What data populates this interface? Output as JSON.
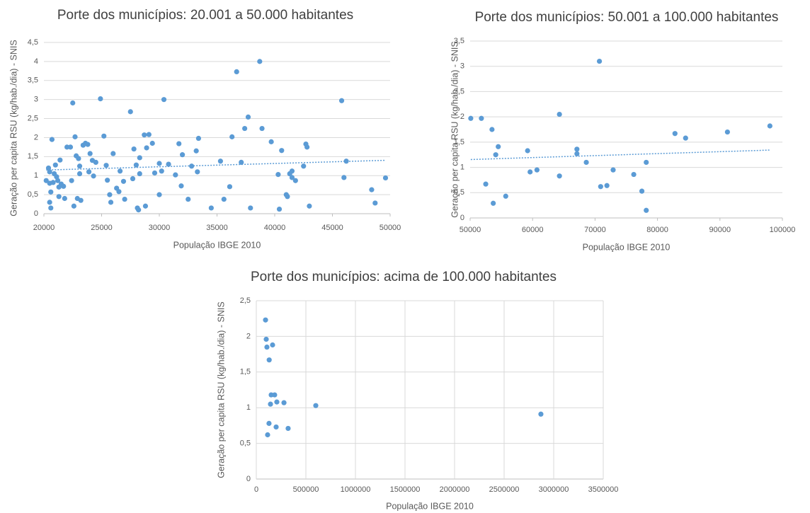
{
  "chart_data": [
    {
      "type": "scatter",
      "title": "Porte dos municípios: 20.001 a 50.000 habitantes",
      "x_label": "População IBGE 2010",
      "y_label": "Geração per capita RSU (kg/hab./dia) - SNIS",
      "color": "#5b9bd5",
      "grid": "y",
      "trendline": {
        "type": "linear",
        "color": "#5b9bd5"
      },
      "x": [
        20200,
        20400,
        20500,
        20500,
        20500,
        20600,
        20600,
        20700,
        20800,
        20900,
        21000,
        21100,
        21200,
        21300,
        21300,
        21400,
        21500,
        21700,
        21800,
        22000,
        22300,
        22400,
        22500,
        22600,
        22700,
        22800,
        22900,
        23000,
        23100,
        23100,
        23200,
        23400,
        23600,
        23800,
        23900,
        24000,
        24200,
        24300,
        24500,
        24900,
        25200,
        25400,
        25500,
        25700,
        25800,
        26000,
        26300,
        26500,
        26600,
        26900,
        27000,
        27500,
        27700,
        27800,
        28000,
        28100,
        28200,
        28300,
        28300,
        28700,
        28800,
        28900,
        29100,
        29400,
        29600,
        30000,
        30000,
        30200,
        30400,
        30800,
        31400,
        31700,
        31900,
        32000,
        32500,
        32800,
        33200,
        33300,
        33400,
        34500,
        35300,
        35600,
        36100,
        36300,
        36700,
        37100,
        37400,
        37700,
        37900,
        38700,
        38900,
        39700,
        40400,
        40300,
        40600,
        41000,
        41100,
        41300,
        41500,
        41500,
        41800,
        42500,
        42700,
        42800,
        43000,
        45800,
        46000,
        46200,
        48400,
        48700,
        49600
      ],
      "values": [
        0.87,
        1.2,
        1.1,
        0.8,
        0.3,
        0.15,
        0.57,
        1.95,
        0.82,
        1.05,
        1.28,
        0.97,
        0.87,
        0.45,
        0.7,
        1.41,
        0.78,
        0.72,
        0.4,
        1.75,
        1.75,
        0.87,
        2.91,
        0.2,
        2.02,
        1.52,
        0.4,
        1.45,
        1.25,
        1.05,
        0.35,
        1.8,
        1.85,
        1.82,
        1.1,
        1.58,
        1.4,
        0.99,
        1.35,
        3.02,
        2.04,
        1.27,
        0.88,
        0.5,
        0.3,
        1.58,
        0.67,
        0.58,
        1.12,
        0.85,
        0.38,
        2.68,
        0.92,
        1.7,
        1.28,
        0.15,
        0.1,
        1.05,
        1.47,
        2.07,
        0.2,
        1.73,
        2.08,
        1.85,
        1.07,
        0.5,
        1.32,
        1.12,
        3.0,
        1.3,
        1.02,
        1.84,
        0.73,
        1.55,
        0.38,
        1.25,
        1.65,
        1.1,
        1.98,
        0.15,
        1.38,
        0.38,
        0.71,
        2.02,
        3.73,
        1.35,
        2.24,
        2.54,
        0.15,
        4.0,
        2.24,
        1.89,
        0.12,
        1.03,
        1.66,
        0.5,
        0.45,
        1.05,
        1.12,
        0.95,
        0.87,
        1.25,
        1.83,
        1.75,
        0.2,
        2.97,
        0.95,
        1.38,
        0.63,
        0.28,
        0.94
      ],
      "xlim": [
        20000,
        50000
      ],
      "xticks": [
        20000,
        25000,
        30000,
        35000,
        40000,
        45000,
        50000
      ],
      "ylim": [
        0,
        4.5
      ],
      "yticks": [
        0,
        {
          "value": 0.5,
          "label": "0,5"
        },
        1,
        {
          "value": 1.5,
          "label": "1,5"
        },
        2,
        {
          "value": 2.5,
          "label": "2,5"
        },
        3,
        {
          "value": 3.5,
          "label": "3,5"
        },
        4,
        {
          "value": 4.5,
          "label": "4,5"
        }
      ]
    },
    {
      "type": "scatter",
      "title": "Porte dos municípios: 50.001 a 100.000 habitantes",
      "x_label": "População IBGE 2010",
      "y_label": "Geração per capita RSU (kg/hab./dia) - SNIS",
      "color": "#5b9bd5",
      "grid": "y",
      "trendline": {
        "type": "linear",
        "color": "#5b9bd5"
      },
      "x": [
        50100,
        51800,
        52500,
        53500,
        53700,
        54100,
        54500,
        55700,
        59200,
        59600,
        60700,
        64300,
        64300,
        67100,
        67100,
        68600,
        70700,
        70900,
        71900,
        72900,
        76200,
        77500,
        78200,
        78200,
        82800,
        84500,
        91200,
        98000
      ],
      "values": [
        1.97,
        1.97,
        0.67,
        1.75,
        0.29,
        1.25,
        1.41,
        0.43,
        1.33,
        0.91,
        0.95,
        2.05,
        0.83,
        1.36,
        1.27,
        1.1,
        3.1,
        0.62,
        0.64,
        0.95,
        0.86,
        0.53,
        1.1,
        0.15,
        1.67,
        1.58,
        1.7,
        1.82
      ],
      "xlim": [
        50000,
        100000
      ],
      "xticks": [
        50000,
        60000,
        70000,
        80000,
        90000,
        100000
      ],
      "ylim": [
        0,
        3.5
      ],
      "yticks": [
        0,
        {
          "value": 0.5,
          "label": "0,5"
        },
        1,
        {
          "value": 1.5,
          "label": "1,5"
        },
        2,
        {
          "value": 2.5,
          "label": "2,5"
        },
        3,
        {
          "value": 3.5,
          "label": "3,5"
        }
      ]
    },
    {
      "type": "scatter",
      "title": "Porte dos municípios: acima de 100.000 habitantes",
      "x_label": "População IBGE 2010",
      "y_label": "Geração per capita RSU (kg/hab./dia) - SNIS",
      "color": "#5b9bd5",
      "grid": "both",
      "x": [
        93000,
        100000,
        107000,
        164000,
        130000,
        150000,
        185000,
        143000,
        207000,
        279000,
        128000,
        200000,
        114000,
        321000,
        600000,
        2871000
      ],
      "values": [
        2.23,
        1.96,
        1.85,
        1.88,
        1.67,
        1.18,
        1.18,
        1.05,
        1.08,
        1.07,
        0.78,
        0.73,
        0.62,
        0.71,
        1.03,
        0.91
      ],
      "xlim": [
        0,
        3500000
      ],
      "xticks": [
        0,
        500000,
        1000000,
        1500000,
        2000000,
        2500000,
        3000000,
        3500000
      ],
      "ylim": [
        0,
        2.5
      ],
      "yticks": [
        0,
        {
          "value": 0.5,
          "label": "0,5"
        },
        1,
        {
          "value": 1.5,
          "label": "1,5"
        },
        2,
        {
          "value": 2.5,
          "label": "2,5"
        }
      ]
    }
  ]
}
